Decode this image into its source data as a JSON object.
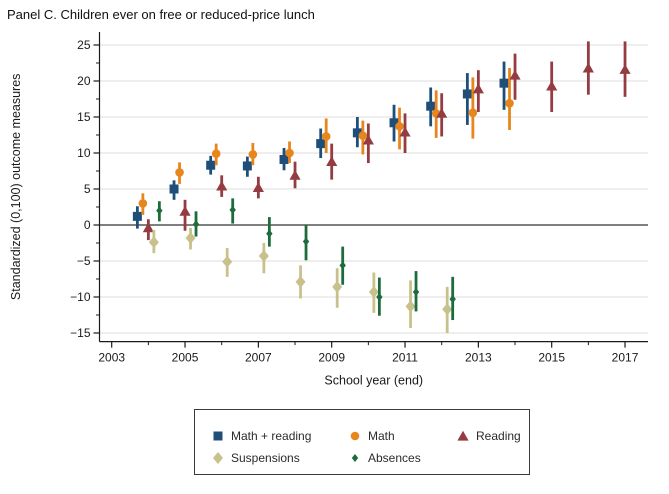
{
  "title": "Panel C. Children ever on free or reduced-price lunch",
  "chart_data": {
    "type": "scatter",
    "title": "Panel C. Children ever on free or reduced-price lunch",
    "xlabel": "School year (end)",
    "ylabel": "Standardized (0,100) outcome measures",
    "grid": true,
    "legend_position": "bottom",
    "xlim": [
      2002.65,
      2017.6
    ],
    "ylim": [
      -16.2,
      26.8
    ],
    "x_axis": {
      "ticks_major": [
        2003,
        2005,
        2007,
        2009,
        2011,
        2013,
        2015,
        2017
      ],
      "ticks_minor": [
        2004,
        2006,
        2008,
        2010,
        2012,
        2014,
        2016
      ]
    },
    "y_axis": {
      "ticks_major": [
        25,
        20,
        15,
        10,
        5,
        0,
        -5,
        -10,
        -15
      ],
      "ticks_minor": [
        22.5,
        17.5,
        12.5,
        7.5,
        2.5,
        -2.5,
        -7.5,
        -12.5
      ],
      "zero_line": 0
    },
    "series": [
      {
        "name": "Math + reading",
        "key": "math-plus-reading",
        "marker": "square",
        "color": "#1f4e79",
        "offset_years": -0.3,
        "points": [
          {
            "year": 2004,
            "value": 1.2,
            "ci": [
              -0.5,
              2.6
            ]
          },
          {
            "year": 2005,
            "value": 5.0,
            "ci": [
              3.5,
              6.2
            ]
          },
          {
            "year": 2006,
            "value": 8.3,
            "ci": [
              7.0,
              9.6
            ]
          },
          {
            "year": 2007,
            "value": 8.2,
            "ci": [
              6.7,
              9.5
            ]
          },
          {
            "year": 2008,
            "value": 9.1,
            "ci": [
              7.6,
              10.7
            ]
          },
          {
            "year": 2009,
            "value": 11.3,
            "ci": [
              9.3,
              13.4
            ]
          },
          {
            "year": 2010,
            "value": 12.8,
            "ci": [
              10.8,
              15.0
            ]
          },
          {
            "year": 2011,
            "value": 14.2,
            "ci": [
              11.6,
              16.7
            ]
          },
          {
            "year": 2012,
            "value": 16.5,
            "ci": [
              13.7,
              19.1
            ]
          },
          {
            "year": 2013,
            "value": 18.2,
            "ci": [
              13.9,
              21.1
            ]
          },
          {
            "year": 2014,
            "value": 19.7,
            "ci": [
              16.0,
              22.7
            ]
          }
        ]
      },
      {
        "name": "Math",
        "key": "math",
        "marker": "circle",
        "color": "#e8861e",
        "offset_years": -0.15,
        "points": [
          {
            "year": 2004,
            "value": 3.0,
            "ci": [
              1.4,
              4.4
            ]
          },
          {
            "year": 2005,
            "value": 7.3,
            "ci": [
              5.7,
              8.7
            ]
          },
          {
            "year": 2006,
            "value": 9.9,
            "ci": [
              8.3,
              11.3
            ]
          },
          {
            "year": 2007,
            "value": 9.8,
            "ci": [
              8.3,
              11.4
            ]
          },
          {
            "year": 2008,
            "value": 10.0,
            "ci": [
              8.6,
              11.6
            ]
          },
          {
            "year": 2009,
            "value": 12.3,
            "ci": [
              10.0,
              14.8
            ]
          },
          {
            "year": 2010,
            "value": 12.4,
            "ci": [
              9.8,
              14.5
            ]
          },
          {
            "year": 2011,
            "value": 13.7,
            "ci": [
              10.5,
              16.3
            ]
          },
          {
            "year": 2012,
            "value": 15.5,
            "ci": [
              12.1,
              18.7
            ]
          },
          {
            "year": 2013,
            "value": 15.6,
            "ci": [
              12.0,
              20.5
            ]
          },
          {
            "year": 2014,
            "value": 16.9,
            "ci": [
              13.2,
              21.8
            ]
          }
        ]
      },
      {
        "name": "Reading",
        "key": "reading",
        "marker": "triangle",
        "color": "#943c42",
        "offset_years": 0,
        "points": [
          {
            "year": 2004,
            "value": -0.4,
            "ci": [
              -2.1,
              0.8
            ]
          },
          {
            "year": 2005,
            "value": 1.9,
            "ci": [
              -0.8,
              3.5
            ]
          },
          {
            "year": 2006,
            "value": 5.4,
            "ci": [
              3.9,
              6.9
            ]
          },
          {
            "year": 2007,
            "value": 5.2,
            "ci": [
              3.7,
              6.7
            ]
          },
          {
            "year": 2008,
            "value": 6.9,
            "ci": [
              5.1,
              8.8
            ]
          },
          {
            "year": 2009,
            "value": 8.8,
            "ci": [
              6.3,
              11.3
            ]
          },
          {
            "year": 2010,
            "value": 11.8,
            "ci": [
              8.6,
              14.1
            ]
          },
          {
            "year": 2011,
            "value": 12.9,
            "ci": [
              10.0,
              15.5
            ]
          },
          {
            "year": 2012,
            "value": 15.5,
            "ci": [
              12.3,
              18.3
            ]
          },
          {
            "year": 2013,
            "value": 18.9,
            "ci": [
              15.7,
              21.5
            ]
          },
          {
            "year": 2014,
            "value": 20.8,
            "ci": [
              17.4,
              23.8
            ]
          },
          {
            "year": 2015,
            "value": 19.3,
            "ci": [
              15.7,
              22.7
            ]
          },
          {
            "year": 2016,
            "value": 21.8,
            "ci": [
              18.1,
              25.5
            ]
          },
          {
            "year": 2017,
            "value": 21.6,
            "ci": [
              17.8,
              25.5
            ]
          }
        ]
      },
      {
        "name": "Suspensions",
        "key": "suspensions",
        "marker": "diamond",
        "color": "#c9c18c",
        "offset_years": 0.15,
        "points": [
          {
            "year": 2004,
            "value": -2.4,
            "ci": [
              -3.9,
              -0.7
            ]
          },
          {
            "year": 2005,
            "value": -1.8,
            "ci": [
              -3.4,
              -0.4
            ]
          },
          {
            "year": 2006,
            "value": -5.1,
            "ci": [
              -7.2,
              -3.2
            ]
          },
          {
            "year": 2007,
            "value": -4.3,
            "ci": [
              -6.7,
              -2.5
            ]
          },
          {
            "year": 2008,
            "value": -7.9,
            "ci": [
              -10.2,
              -5.6
            ]
          },
          {
            "year": 2009,
            "value": -8.6,
            "ci": [
              -11.5,
              -6.0
            ]
          },
          {
            "year": 2010,
            "value": -9.3,
            "ci": [
              -12.2,
              -6.6
            ]
          },
          {
            "year": 2011,
            "value": -11.3,
            "ci": [
              -14.3,
              -7.7
            ]
          },
          {
            "year": 2012,
            "value": -11.7,
            "ci": [
              -15.0,
              -8.6
            ]
          }
        ]
      },
      {
        "name": "Absences",
        "key": "absences",
        "marker": "diamond-small",
        "color": "#1e6b3c",
        "offset_years": 0.3,
        "points": [
          {
            "year": 2004,
            "value": 2.0,
            "ci": [
              0.5,
              3.3
            ]
          },
          {
            "year": 2005,
            "value": 0.1,
            "ci": [
              -1.6,
              1.9
            ]
          },
          {
            "year": 2006,
            "value": 2.1,
            "ci": [
              0.2,
              3.7
            ]
          },
          {
            "year": 2007,
            "value": -1.2,
            "ci": [
              -3.0,
              1.1
            ]
          },
          {
            "year": 2008,
            "value": -2.3,
            "ci": [
              -4.9,
              0.0
            ]
          },
          {
            "year": 2009,
            "value": -5.6,
            "ci": [
              -8.3,
              -3.0
            ]
          },
          {
            "year": 2010,
            "value": -10.0,
            "ci": [
              -12.6,
              -7.3
            ]
          },
          {
            "year": 2011,
            "value": -9.3,
            "ci": [
              -12.0,
              -6.4
            ]
          },
          {
            "year": 2012,
            "value": -10.3,
            "ci": [
              -13.2,
              -7.2
            ]
          }
        ]
      }
    ],
    "colors": {
      "grid": "#dedede",
      "zero_line": "#555555",
      "axis": "#1a1a1a",
      "legend_border": "#3a3a3a"
    }
  }
}
